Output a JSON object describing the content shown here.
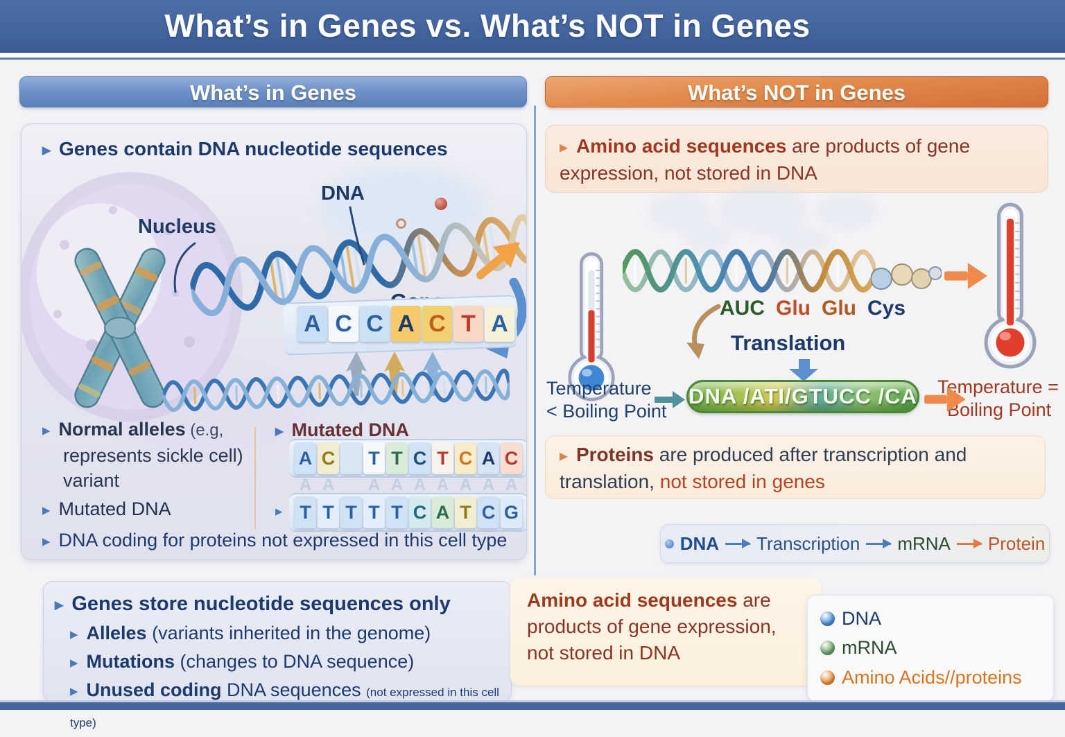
{
  "palette": {
    "banner_blue": "#44659f",
    "header_blue": "#6e92c7",
    "header_orange": "#e08a4c",
    "navy_text": "#1e3a6c",
    "maroon_text": "#a03820"
  },
  "page": {
    "title": "What’s in Genes vs. What’s NOT in Genes"
  },
  "left": {
    "header": "What’s in Genes",
    "contains_bullet": "Genes contain DNA nucleotide sequences",
    "illustration": {
      "nucleus_label": "Nucleus",
      "dna_label": "DNA",
      "gene_label": "Gene",
      "gene_sequence": [
        {
          "ch": "A",
          "fg": "#2d5fa3",
          "bg": "#cadff3"
        },
        {
          "ch": "C",
          "fg": "#2d5fa3",
          "bg": "#f4f8fc"
        },
        {
          "ch": "C",
          "fg": "#2d5fa3",
          "bg": "#cde1f4"
        },
        {
          "ch": "A",
          "fg": "#1e3a6c",
          "bg": "#f5ca6a"
        },
        {
          "ch": "C",
          "fg": "#c35a1c",
          "bg": "#f1d170"
        },
        {
          "ch": "T",
          "fg": "#c03a2a",
          "bg": "#f7d8c4"
        },
        {
          "ch": "A",
          "fg": "#2d5fa3",
          "bg": "#f8f1da"
        }
      ]
    },
    "alleles": {
      "bold": "Normal alleles",
      "rest1": " (e.g,",
      "line2": "represents sickle cell)",
      "line3": "variant"
    },
    "mutated_left_label": "Mutated DNA",
    "mutated_right_label": "Mutated DNA",
    "mutated_seq1": [
      {
        "ch": "A",
        "fg": "#2d5fa3",
        "bg": "#cfe3f5"
      },
      {
        "ch": "C",
        "fg": "#8f7d17",
        "bg": "#f1ecd2"
      },
      {
        "ch": "",
        "fg": "#000000",
        "bg": "#d9e7f5"
      },
      {
        "ch": "T",
        "fg": "#2d5fa3",
        "bg": "#f6f9fc"
      },
      {
        "ch": "T",
        "fg": "#2e6b4f",
        "bg": "#d8ecd8"
      },
      {
        "ch": "C",
        "fg": "#1f4e79",
        "bg": "#cfe3f5"
      },
      {
        "ch": "T",
        "fg": "#c03426",
        "bg": "#f8f2ec"
      },
      {
        "ch": "C",
        "fg": "#d3731f",
        "bg": "#f6ecca"
      },
      {
        "ch": "A",
        "fg": "#1e3a6c",
        "bg": "#d5e5f4"
      },
      {
        "ch": "C",
        "fg": "#b33a2b",
        "bg": "#f9ddd3"
      }
    ],
    "ghost_row": [
      {
        "ch": "A",
        "fg": "#c3cfe0",
        "ghost": true
      },
      {
        "ch": "A",
        "fg": "#c3cfe0",
        "ghost": true
      },
      {
        "ch": "",
        "fg": "#c3cfe0",
        "ghost": true
      },
      {
        "ch": "A",
        "fg": "#c3cfe0",
        "ghost": true
      },
      {
        "ch": "A",
        "fg": "#c3cfe0",
        "ghost": true
      },
      {
        "ch": "A",
        "fg": "#c3cfe0",
        "ghost": true
      },
      {
        "ch": "A",
        "fg": "#c3cfe0",
        "ghost": true
      },
      {
        "ch": "A",
        "fg": "#c3cfe0",
        "ghost": true
      },
      {
        "ch": "A",
        "fg": "#c3cfe0",
        "ghost": true
      },
      {
        "ch": "A",
        "fg": "#c3cfe0",
        "ghost": true
      }
    ],
    "mutated_seq2": [
      {
        "ch": "T",
        "fg": "#2d5fa3",
        "bg": "#cfe3f5"
      },
      {
        "ch": "T",
        "fg": "#2d5fa3",
        "bg": "#e2eefa"
      },
      {
        "ch": "T",
        "fg": "#2d5fa3",
        "bg": "#cfe3f5"
      },
      {
        "ch": "T",
        "fg": "#2d5fa3",
        "bg": "#e2eefa"
      },
      {
        "ch": "T",
        "fg": "#2d5fa3",
        "bg": "#cfe3f5"
      },
      {
        "ch": "C",
        "fg": "#1f6b7a",
        "bg": "#d4e9f0"
      },
      {
        "ch": "A",
        "fg": "#2e6b4f",
        "bg": "#d8ecd8"
      },
      {
        "ch": "T",
        "fg": "#8f7d17",
        "bg": "#f1ecd2"
      },
      {
        "ch": "C",
        "fg": "#2d5fa3",
        "bg": "#cfe3f5"
      },
      {
        "ch": "G",
        "fg": "#2d5fa3",
        "bg": "#dcebf7"
      }
    ],
    "coding_bullet": "DNA coding for proteins not expressed in this cell type"
  },
  "right": {
    "header": "What’s NOT in Genes",
    "box1": {
      "bold": "Amino acid sequences",
      "rest": " are products of gene expression, not stored in DNA"
    },
    "illustration": {
      "codons": [
        {
          "text": "AUC",
          "color": "#2d5a2d"
        },
        {
          "text": "Glu",
          "color": "#c24c28"
        },
        {
          "text": "Glu",
          "color": "#b05a1e"
        },
        {
          "text": "Cys",
          "color": "#1e3a6c"
        }
      ],
      "translation_label": "Translation",
      "capsule_text": "DNA /ATI/GTUCC /CA",
      "temp_left_line1": "Temperature",
      "temp_left_line2": "< Boiling Point",
      "temp_right_line1": "Temperature =",
      "temp_right_line2": "Boiling Point"
    },
    "box2": {
      "seg1": "Proteins",
      "seg2": " are produced after transcription and translation, ",
      "seg3": "not stored in genes"
    },
    "flow": {
      "dna": "DNA",
      "transcription": "Transcription",
      "mrna": "mRNA",
      "protein": "Protein"
    }
  },
  "bottom": {
    "left_box": {
      "title": "Genes store nucleotide sequences only",
      "items": [
        {
          "bold": "Alleles",
          "rest": " (variants inherited in the genome)"
        },
        {
          "bold": "Mutations",
          "rest": " (changes to DNA sequence)"
        },
        {
          "bold": "Unused coding",
          "rest": " DNA sequences ",
          "small": "(not expressed in this cell type)"
        }
      ]
    },
    "right_box": {
      "bold": "Amino acid sequences",
      "rest": " are products of gene expression, not stored in DNA"
    },
    "legend": {
      "items": [
        {
          "label": "DNA",
          "dot": "#4a90d9",
          "color": "#1f3a6d"
        },
        {
          "label": "mRNA",
          "dot": "#6aa36a",
          "color": "#2c4a2c"
        },
        {
          "label": "Amino Acids//proteins",
          "dot": "#e8923a",
          "color": "#d9731e"
        }
      ]
    }
  }
}
